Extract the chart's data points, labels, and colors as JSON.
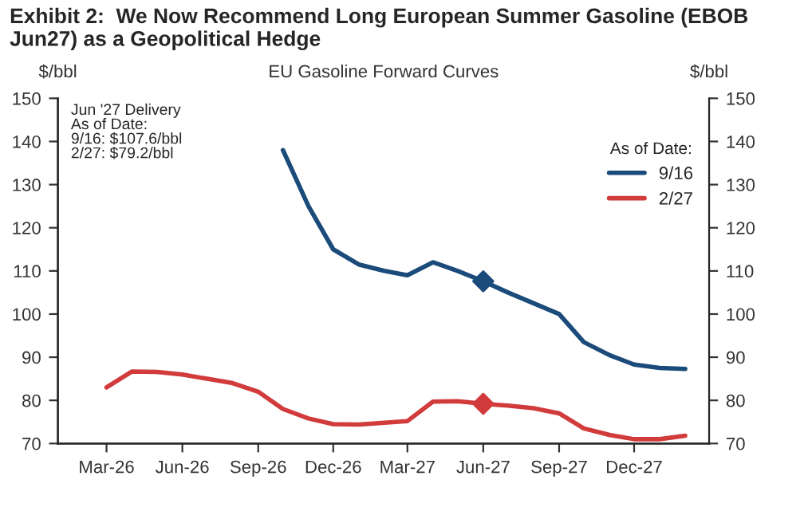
{
  "chart_data": {
    "type": "line",
    "title": "Exhibit 2:  We Now Recommend Long European Summer Gasoline (EBOB Jun27) as a Geopolitical Hedge",
    "subtitle": "EU Gasoline Forward Curves",
    "ylabel": "$/bbl",
    "y2label": "$/bbl",
    "legend_title": "As of Date:",
    "annotations": [
      "Jun '27 Delivery\nAs of Date:\n9/16: $107.6/bbl\n2/27: $79.2/bbl"
    ],
    "series": [
      {
        "name": "9/16",
        "color": "#1b4b7a",
        "x": [
          "2026-10",
          "2026-11",
          "2026-12",
          "2027-01",
          "2027-02",
          "2027-03",
          "2027-04",
          "2027-05",
          "2027-06",
          "2027-07",
          "2027-08",
          "2027-09",
          "2027-10",
          "2027-11",
          "2027-12",
          "2028-01",
          "2028-02"
        ],
        "values": [
          138,
          125,
          115,
          111.5,
          110,
          109,
          112,
          110,
          107.6,
          105,
          102.5,
          100,
          93.5,
          90.5,
          88.3,
          87.5,
          87.3
        ]
      },
      {
        "name": "2/27",
        "color": "#d23b3b",
        "x": [
          "2026-03",
          "2026-04",
          "2026-05",
          "2026-06",
          "2026-07",
          "2026-08",
          "2026-09",
          "2026-10",
          "2026-11",
          "2026-12",
          "2027-01",
          "2027-02",
          "2027-03",
          "2027-04",
          "2027-05",
          "2027-06",
          "2027-07",
          "2027-08",
          "2027-09",
          "2027-10",
          "2027-11",
          "2027-12",
          "2028-01",
          "2028-02"
        ],
        "values": [
          83,
          86.7,
          86.6,
          86,
          85,
          84,
          82,
          78,
          75.8,
          74.5,
          74.4,
          74.8,
          75.2,
          79.7,
          79.8,
          79.2,
          78.8,
          78.2,
          77,
          73.5,
          72,
          71,
          71,
          71.8
        ]
      },
      {
        "type": "scatter",
        "marker": "diamond",
        "color": "#1b4b7a",
        "x": [
          "2027-06"
        ],
        "values": [
          107.6
        ]
      },
      {
        "type": "scatter",
        "marker": "diamond",
        "color": "#d23b3b",
        "x": [
          "2027-06"
        ],
        "values": [
          79.2
        ]
      }
    ],
    "xlim": [
      "2026-01",
      "2028-03"
    ],
    "xticks": [
      {
        "value": "2026-03",
        "label": "Mar-26"
      },
      {
        "value": "2026-06",
        "label": "Jun-26"
      },
      {
        "value": "2026-09",
        "label": "Sep-26"
      },
      {
        "value": "2026-12",
        "label": "Dec-26"
      },
      {
        "value": "2027-03",
        "label": "Mar-27"
      },
      {
        "value": "2027-06",
        "label": "Jun-27"
      },
      {
        "value": "2027-09",
        "label": "Sep-27"
      },
      {
        "value": "2027-12",
        "label": "Dec-27"
      }
    ],
    "ylim": [
      70,
      150
    ],
    "yticks": [
      70,
      80,
      90,
      100,
      110,
      120,
      130,
      140,
      150
    ],
    "y2lim": [
      70,
      150
    ],
    "y2ticks": [
      70,
      80,
      90,
      100,
      110,
      120,
      130,
      140,
      150
    ],
    "grid": false,
    "legend": "top right",
    "marker": "none",
    "line_style": "solid"
  }
}
